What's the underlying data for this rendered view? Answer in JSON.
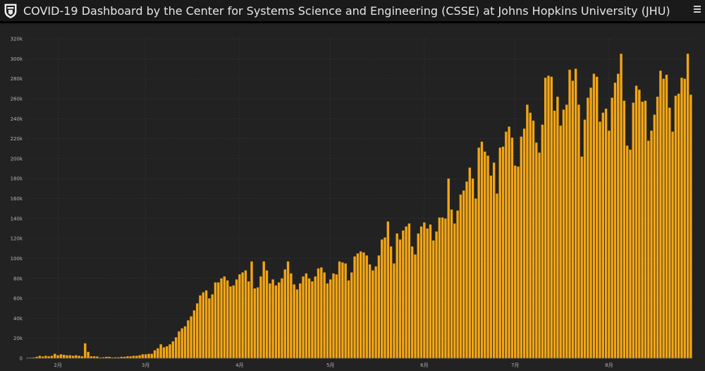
{
  "header": {
    "title": "COVID-19 Dashboard by the Center for Systems Science and Engineering (CSSE) at Johns Hopkins University (JHU)",
    "logo_icon": "university-shield-icon",
    "menu_icon": "hamburger-menu-icon"
  },
  "colors": {
    "bar": "#f2a516",
    "background": "#222222",
    "header_background": "#1a1a1a",
    "grid": "#3a3a3a",
    "tick_text": "#b5b5b5"
  },
  "chart_data": {
    "type": "bar",
    "title": "",
    "xlabel": "",
    "ylabel": "",
    "ylim": [
      0,
      320000
    ],
    "grid": true,
    "yticks": [
      {
        "value": 0,
        "label": "0"
      },
      {
        "value": 20000,
        "label": "20k"
      },
      {
        "value": 40000,
        "label": "40k"
      },
      {
        "value": 60000,
        "label": "60k"
      },
      {
        "value": 80000,
        "label": "80k"
      },
      {
        "value": 100000,
        "label": "100k"
      },
      {
        "value": 120000,
        "label": "120k"
      },
      {
        "value": 140000,
        "label": "140k"
      },
      {
        "value": 160000,
        "label": "160k"
      },
      {
        "value": 180000,
        "label": "180k"
      },
      {
        "value": 200000,
        "label": "200k"
      },
      {
        "value": 220000,
        "label": "220k"
      },
      {
        "value": 240000,
        "label": "240k"
      },
      {
        "value": 260000,
        "label": "260k"
      },
      {
        "value": 280000,
        "label": "280k"
      },
      {
        "value": 300000,
        "label": "300k"
      },
      {
        "value": 320000,
        "label": "320k"
      }
    ],
    "xticks": [
      {
        "index": 10,
        "label": "2月"
      },
      {
        "index": 39,
        "label": "3月"
      },
      {
        "index": 70,
        "label": "4月"
      },
      {
        "index": 100,
        "label": "5月"
      },
      {
        "index": 131,
        "label": "6月"
      },
      {
        "index": 161,
        "label": "7月"
      },
      {
        "index": 192,
        "label": "8月"
      }
    ],
    "values": [
      500,
      600,
      800,
      1500,
      2500,
      1800,
      2500,
      2000,
      2500,
      4500,
      3000,
      4000,
      3500,
      3000,
      3000,
      2500,
      3000,
      2500,
      2000,
      15000,
      6500,
      2000,
      2000,
      1800,
      800,
      1000,
      1500,
      1500,
      800,
      1000,
      1000,
      1500,
      1500,
      2000,
      2000,
      2500,
      2500,
      3000,
      4000,
      4000,
      4500,
      4500,
      8000,
      10000,
      14000,
      11000,
      12000,
      14000,
      17000,
      21000,
      27000,
      30000,
      32000,
      38000,
      42000,
      48000,
      55000,
      63000,
      66000,
      68000,
      60000,
      64000,
      76000,
      76000,
      80000,
      82000,
      78000,
      72000,
      73000,
      79000,
      84000,
      86000,
      88000,
      77000,
      97000,
      70000,
      71000,
      82000,
      97000,
      88000,
      75000,
      79000,
      73000,
      76000,
      80000,
      89000,
      97000,
      85000,
      74000,
      69000,
      75000,
      82000,
      85000,
      80000,
      77000,
      82000,
      90000,
      91000,
      86000,
      75000,
      79000,
      85000,
      84000,
      97000,
      96000,
      95000,
      78000,
      86000,
      102000,
      105000,
      107000,
      106000,
      103000,
      94000,
      88000,
      92000,
      103000,
      119000,
      121000,
      137000,
      112000,
      95000,
      125000,
      119000,
      128000,
      132000,
      135000,
      112000,
      104000,
      125000,
      132000,
      136000,
      130000,
      134000,
      118000,
      127000,
      141000,
      141000,
      140000,
      180000,
      149000,
      135000,
      148000,
      164000,
      168000,
      177000,
      191000,
      180000,
      160000,
      211000,
      217000,
      207000,
      203000,
      183000,
      196000,
      165000,
      211000,
      212000,
      227000,
      232000,
      221000,
      193000,
      192000,
      222000,
      230000,
      254000,
      246000,
      238000,
      216000,
      206000,
      234000,
      281000,
      283000,
      282000,
      248000,
      262000,
      233000,
      249000,
      254000,
      289000,
      278000,
      290000,
      254000,
      202000,
      239000,
      261000,
      271000,
      285000,
      282000,
      237000,
      246000,
      250000,
      228000,
      261000,
      276000,
      285000,
      305000,
      258000,
      213000,
      209000,
      256000,
      273000,
      269000,
      257000,
      258000,
      218000,
      228000,
      244000,
      262000,
      288000,
      280000,
      284000,
      251000,
      227000,
      263000,
      265000,
      281000,
      280000,
      305000,
      264000
    ]
  }
}
